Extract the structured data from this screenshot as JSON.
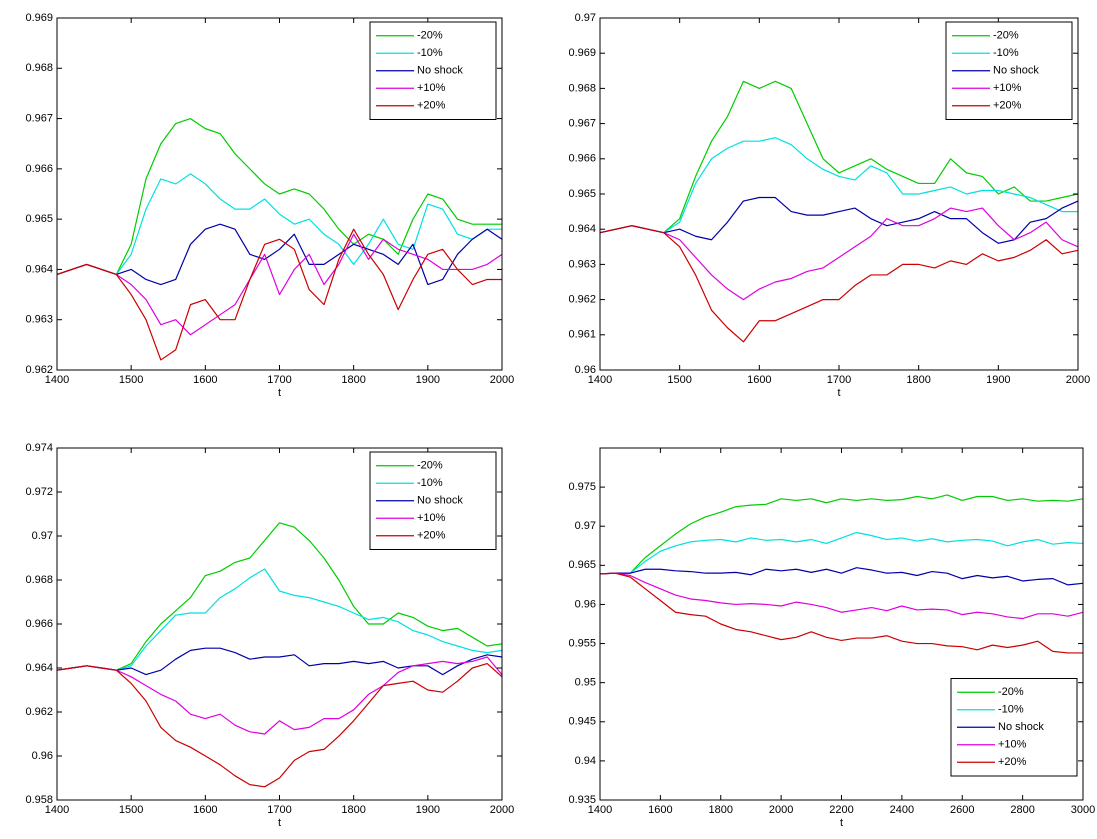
{
  "chart_data": [
    {
      "type": "line",
      "xlabel": "t",
      "x": [
        1400,
        1420,
        1440,
        1460,
        1480,
        1500,
        1520,
        1540,
        1560,
        1580,
        1600,
        1620,
        1640,
        1660,
        1680,
        1700,
        1720,
        1740,
        1760,
        1780,
        1800,
        1820,
        1840,
        1860,
        1880,
        1900,
        1920,
        1940,
        1960,
        1980,
        2000
      ],
      "xlim": [
        1400,
        2000
      ],
      "xticks": [
        1400,
        1500,
        1600,
        1700,
        1800,
        1900,
        2000
      ],
      "ylim": [
        0.962,
        0.969
      ],
      "yticks": [
        0.962,
        0.963,
        0.964,
        0.965,
        0.966,
        0.967,
        0.968,
        0.969
      ],
      "legend": "upper right",
      "series": [
        {
          "name": "-20%",
          "color": "#00cc00",
          "values": [
            0.9639,
            0.964,
            0.9641,
            0.964,
            0.9639,
            0.9645,
            0.9658,
            0.9665,
            0.9669,
            0.967,
            0.9668,
            0.9667,
            0.9663,
            0.966,
            0.9657,
            0.9655,
            0.9656,
            0.9655,
            0.9652,
            0.9648,
            0.9645,
            0.9647,
            0.9646,
            0.9643,
            0.965,
            0.9655,
            0.9654,
            0.965,
            0.9649,
            0.9649,
            0.9649
          ]
        },
        {
          "name": "-10%",
          "color": "#00e0e0",
          "values": [
            0.9639,
            0.964,
            0.9641,
            0.964,
            0.9639,
            0.9643,
            0.9652,
            0.9658,
            0.9657,
            0.9659,
            0.9657,
            0.9654,
            0.9652,
            0.9652,
            0.9654,
            0.9651,
            0.9649,
            0.965,
            0.9647,
            0.9645,
            0.9641,
            0.9645,
            0.965,
            0.9645,
            0.9644,
            0.9653,
            0.9652,
            0.9647,
            0.9646,
            0.9648,
            0.9648
          ]
        },
        {
          "name": "No shock",
          "color": "#0000aa",
          "values": [
            0.9639,
            0.964,
            0.9641,
            0.964,
            0.9639,
            0.964,
            0.9638,
            0.9637,
            0.9638,
            0.9645,
            0.9648,
            0.9649,
            0.9648,
            0.9643,
            0.9642,
            0.9644,
            0.9647,
            0.9641,
            0.9641,
            0.9643,
            0.9645,
            0.9644,
            0.9643,
            0.9641,
            0.9645,
            0.9637,
            0.9638,
            0.9643,
            0.9646,
            0.9648,
            0.9646
          ]
        },
        {
          "name": "+10%",
          "color": "#e000e0",
          "values": [
            0.9639,
            0.964,
            0.9641,
            0.964,
            0.9639,
            0.9637,
            0.9634,
            0.9629,
            0.963,
            0.9627,
            0.9629,
            0.9631,
            0.9633,
            0.9638,
            0.9643,
            0.9635,
            0.964,
            0.9643,
            0.9637,
            0.9641,
            0.9647,
            0.9642,
            0.9646,
            0.9644,
            0.9643,
            0.9642,
            0.964,
            0.964,
            0.964,
            0.9641,
            0.9643
          ]
        },
        {
          "name": "+20%",
          "color": "#cc0000",
          "values": [
            0.9639,
            0.964,
            0.9641,
            0.964,
            0.9639,
            0.9635,
            0.963,
            0.9622,
            0.9624,
            0.9633,
            0.9634,
            0.963,
            0.963,
            0.9638,
            0.9645,
            0.9646,
            0.9644,
            0.9636,
            0.9633,
            0.9642,
            0.9648,
            0.9643,
            0.9639,
            0.9632,
            0.9638,
            0.9643,
            0.9644,
            0.964,
            0.9637,
            0.9638,
            0.9638
          ]
        }
      ]
    },
    {
      "type": "line",
      "xlabel": "t",
      "x": [
        1400,
        1420,
        1440,
        1460,
        1480,
        1500,
        1520,
        1540,
        1560,
        1580,
        1600,
        1620,
        1640,
        1660,
        1680,
        1700,
        1720,
        1740,
        1760,
        1780,
        1800,
        1820,
        1840,
        1860,
        1880,
        1900,
        1920,
        1940,
        1960,
        1980,
        2000
      ],
      "xlim": [
        1400,
        2000
      ],
      "xticks": [
        1400,
        1500,
        1600,
        1700,
        1800,
        1900,
        2000
      ],
      "ylim": [
        0.96,
        0.97
      ],
      "yticks": [
        0.96,
        0.961,
        0.962,
        0.963,
        0.964,
        0.965,
        0.966,
        0.967,
        0.968,
        0.969,
        0.97
      ],
      "legend": "upper right",
      "series": [
        {
          "name": "-20%",
          "color": "#00cc00",
          "values": [
            0.9639,
            0.964,
            0.9641,
            0.964,
            0.9639,
            0.9643,
            0.9655,
            0.9665,
            0.9672,
            0.9682,
            0.968,
            0.9682,
            0.968,
            0.967,
            0.966,
            0.9656,
            0.9658,
            0.966,
            0.9657,
            0.9655,
            0.9653,
            0.9653,
            0.966,
            0.9656,
            0.9655,
            0.965,
            0.9652,
            0.9648,
            0.9648,
            0.9649,
            0.965
          ]
        },
        {
          "name": "-10%",
          "color": "#00e0e0",
          "values": [
            0.9639,
            0.964,
            0.9641,
            0.964,
            0.9639,
            0.9642,
            0.9653,
            0.966,
            0.9663,
            0.9665,
            0.9665,
            0.9666,
            0.9664,
            0.966,
            0.9657,
            0.9655,
            0.9654,
            0.9658,
            0.9656,
            0.965,
            0.965,
            0.9651,
            0.9652,
            0.965,
            0.9651,
            0.9651,
            0.965,
            0.9649,
            0.9647,
            0.9645,
            0.9645
          ]
        },
        {
          "name": "No shock",
          "color": "#0000aa",
          "values": [
            0.9639,
            0.964,
            0.9641,
            0.964,
            0.9639,
            0.964,
            0.9638,
            0.9637,
            0.9642,
            0.9648,
            0.9649,
            0.9649,
            0.9645,
            0.9644,
            0.9644,
            0.9645,
            0.9646,
            0.9643,
            0.9641,
            0.9642,
            0.9643,
            0.9645,
            0.9643,
            0.9643,
            0.9639,
            0.9636,
            0.9637,
            0.9642,
            0.9643,
            0.9646,
            0.9648
          ]
        },
        {
          "name": "+10%",
          "color": "#e000e0",
          "values": [
            0.9639,
            0.964,
            0.9641,
            0.964,
            0.9639,
            0.9637,
            0.9632,
            0.9627,
            0.9623,
            0.962,
            0.9623,
            0.9625,
            0.9626,
            0.9628,
            0.9629,
            0.9632,
            0.9635,
            0.9638,
            0.9643,
            0.9641,
            0.9641,
            0.9643,
            0.9646,
            0.9645,
            0.9646,
            0.9641,
            0.9637,
            0.9639,
            0.9642,
            0.9637,
            0.9635
          ]
        },
        {
          "name": "+20%",
          "color": "#cc0000",
          "values": [
            0.9639,
            0.964,
            0.9641,
            0.964,
            0.9639,
            0.9635,
            0.9627,
            0.9617,
            0.9612,
            0.9608,
            0.9614,
            0.9614,
            0.9616,
            0.9618,
            0.962,
            0.962,
            0.9624,
            0.9627,
            0.9627,
            0.963,
            0.963,
            0.9629,
            0.9631,
            0.963,
            0.9633,
            0.9631,
            0.9632,
            0.9634,
            0.9637,
            0.9633,
            0.9634
          ]
        }
      ]
    },
    {
      "type": "line",
      "xlabel": "t",
      "x": [
        1400,
        1420,
        1440,
        1460,
        1480,
        1500,
        1520,
        1540,
        1560,
        1580,
        1600,
        1620,
        1640,
        1660,
        1680,
        1700,
        1720,
        1740,
        1760,
        1780,
        1800,
        1820,
        1840,
        1860,
        1880,
        1900,
        1920,
        1940,
        1960,
        1980,
        2000
      ],
      "xlim": [
        1400,
        2000
      ],
      "xticks": [
        1400,
        1500,
        1600,
        1700,
        1800,
        1900,
        2000
      ],
      "ylim": [
        0.958,
        0.974
      ],
      "yticks": [
        0.958,
        0.96,
        0.962,
        0.964,
        0.966,
        0.968,
        0.97,
        0.972,
        0.974
      ],
      "legend": "upper right",
      "series": [
        {
          "name": "-20%",
          "color": "#00cc00",
          "values": [
            0.9639,
            0.964,
            0.9641,
            0.964,
            0.9639,
            0.9642,
            0.9652,
            0.966,
            0.9666,
            0.9672,
            0.9682,
            0.9684,
            0.9688,
            0.969,
            0.9698,
            0.9706,
            0.9704,
            0.9698,
            0.969,
            0.968,
            0.9668,
            0.966,
            0.966,
            0.9665,
            0.9663,
            0.9659,
            0.9657,
            0.9658,
            0.9654,
            0.965,
            0.9651
          ]
        },
        {
          "name": "-10%",
          "color": "#00e0e0",
          "values": [
            0.9639,
            0.964,
            0.9641,
            0.964,
            0.9639,
            0.9641,
            0.965,
            0.9657,
            0.9664,
            0.9665,
            0.9665,
            0.9672,
            0.9676,
            0.9681,
            0.9685,
            0.9675,
            0.9673,
            0.9672,
            0.967,
            0.9668,
            0.9665,
            0.9662,
            0.9663,
            0.9661,
            0.9657,
            0.9655,
            0.9652,
            0.965,
            0.9648,
            0.9647,
            0.9648
          ]
        },
        {
          "name": "No shock",
          "color": "#0000aa",
          "values": [
            0.9639,
            0.964,
            0.9641,
            0.964,
            0.9639,
            0.964,
            0.9637,
            0.9639,
            0.9644,
            0.9648,
            0.9649,
            0.9649,
            0.9647,
            0.9644,
            0.9645,
            0.9645,
            0.9646,
            0.9641,
            0.9642,
            0.9642,
            0.9643,
            0.9642,
            0.9643,
            0.964,
            0.9641,
            0.9641,
            0.9637,
            0.9641,
            0.9644,
            0.9646,
            0.9645
          ]
        },
        {
          "name": "+10%",
          "color": "#e000e0",
          "values": [
            0.9639,
            0.964,
            0.9641,
            0.964,
            0.9639,
            0.9636,
            0.9632,
            0.9628,
            0.9625,
            0.9619,
            0.9617,
            0.9619,
            0.9614,
            0.9611,
            0.961,
            0.9616,
            0.9612,
            0.9613,
            0.9617,
            0.9617,
            0.9621,
            0.9628,
            0.9632,
            0.9638,
            0.9641,
            0.9642,
            0.9643,
            0.9642,
            0.9643,
            0.9645,
            0.9637
          ]
        },
        {
          "name": "+20%",
          "color": "#cc0000",
          "values": [
            0.9639,
            0.964,
            0.9641,
            0.964,
            0.9639,
            0.9633,
            0.9625,
            0.9613,
            0.9607,
            0.9604,
            0.96,
            0.9596,
            0.9591,
            0.9587,
            0.9586,
            0.959,
            0.9598,
            0.9602,
            0.9603,
            0.9609,
            0.9616,
            0.9624,
            0.9632,
            0.9633,
            0.9634,
            0.963,
            0.9629,
            0.9634,
            0.964,
            0.9642,
            0.9636
          ]
        }
      ]
    },
    {
      "type": "line",
      "xlabel": "t",
      "x": [
        1400,
        1450,
        1500,
        1550,
        1600,
        1650,
        1700,
        1750,
        1800,
        1850,
        1900,
        1950,
        2000,
        2050,
        2100,
        2150,
        2200,
        2250,
        2300,
        2350,
        2400,
        2450,
        2500,
        2550,
        2600,
        2650,
        2700,
        2750,
        2800,
        2850,
        2900,
        2950,
        3000
      ],
      "xlim": [
        1400,
        3000
      ],
      "xticks": [
        1400,
        1600,
        1800,
        2000,
        2200,
        2400,
        2600,
        2800,
        3000
      ],
      "ylim": [
        0.935,
        0.98
      ],
      "yticks": [
        0.935,
        0.94,
        0.945,
        0.95,
        0.955,
        0.96,
        0.965,
        0.97,
        0.975
      ],
      "legend": "lower right",
      "series": [
        {
          "name": "-20%",
          "color": "#00cc00",
          "values": [
            0.9639,
            0.964,
            0.964,
            0.966,
            0.9675,
            0.969,
            0.9703,
            0.9712,
            0.9718,
            0.9725,
            0.9727,
            0.9728,
            0.9735,
            0.9733,
            0.9735,
            0.973,
            0.9735,
            0.9733,
            0.9735,
            0.9733,
            0.9734,
            0.9738,
            0.9735,
            0.974,
            0.9733,
            0.9738,
            0.9738,
            0.9733,
            0.9735,
            0.9732,
            0.9733,
            0.9732,
            0.9735
          ]
        },
        {
          "name": "-10%",
          "color": "#00e0e0",
          "values": [
            0.9639,
            0.964,
            0.964,
            0.9655,
            0.9668,
            0.9675,
            0.968,
            0.9682,
            0.9683,
            0.968,
            0.9685,
            0.9682,
            0.9683,
            0.968,
            0.9683,
            0.9678,
            0.9685,
            0.9692,
            0.9688,
            0.9683,
            0.9685,
            0.9681,
            0.9684,
            0.968,
            0.9682,
            0.9683,
            0.9681,
            0.9675,
            0.968,
            0.9683,
            0.9677,
            0.9679,
            0.9678
          ]
        },
        {
          "name": "No shock",
          "color": "#0000aa",
          "values": [
            0.9639,
            0.964,
            0.964,
            0.9645,
            0.9645,
            0.9643,
            0.9642,
            0.964,
            0.964,
            0.9641,
            0.9638,
            0.9645,
            0.9643,
            0.9645,
            0.9641,
            0.9645,
            0.964,
            0.9647,
            0.9644,
            0.964,
            0.9641,
            0.9637,
            0.9642,
            0.964,
            0.9633,
            0.9637,
            0.9634,
            0.9636,
            0.963,
            0.9632,
            0.9633,
            0.9625,
            0.9627
          ]
        },
        {
          "name": "+10%",
          "color": "#e000e0",
          "values": [
            0.9639,
            0.964,
            0.9637,
            0.9628,
            0.962,
            0.9612,
            0.9607,
            0.9605,
            0.9602,
            0.96,
            0.9601,
            0.96,
            0.9598,
            0.9603,
            0.96,
            0.9596,
            0.959,
            0.9593,
            0.9596,
            0.9592,
            0.9598,
            0.9593,
            0.9594,
            0.9593,
            0.9587,
            0.959,
            0.9588,
            0.9584,
            0.9582,
            0.9588,
            0.9588,
            0.9585,
            0.959
          ]
        },
        {
          "name": "+20%",
          "color": "#cc0000",
          "values": [
            0.9639,
            0.964,
            0.9635,
            0.962,
            0.9605,
            0.959,
            0.9587,
            0.9585,
            0.9575,
            0.9568,
            0.9565,
            0.956,
            0.9555,
            0.9558,
            0.9565,
            0.9558,
            0.9554,
            0.9557,
            0.9557,
            0.956,
            0.9553,
            0.955,
            0.955,
            0.9547,
            0.9546,
            0.9542,
            0.9548,
            0.9545,
            0.9548,
            0.9553,
            0.954,
            0.9538,
            0.9538
          ]
        }
      ]
    }
  ]
}
